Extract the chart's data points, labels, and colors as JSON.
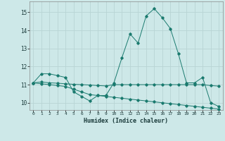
{
  "xlabel": "Humidex (Indice chaleur)",
  "background_color": "#cde8e8",
  "grid_color": "#b8d4d4",
  "line_color": "#1a7a6e",
  "xlim": [
    -0.5,
    23.5
  ],
  "ylim": [
    9.6,
    15.6
  ],
  "yticks": [
    10,
    11,
    12,
    13,
    14,
    15
  ],
  "xticks": [
    0,
    1,
    2,
    3,
    4,
    5,
    6,
    7,
    8,
    9,
    10,
    11,
    12,
    13,
    14,
    15,
    16,
    17,
    18,
    19,
    20,
    21,
    22,
    23
  ],
  "series": [
    [
      11.1,
      11.6,
      11.6,
      11.5,
      11.4,
      10.6,
      10.35,
      10.1,
      10.4,
      10.4,
      11.1,
      12.5,
      13.8,
      13.3,
      14.8,
      15.2,
      14.7,
      14.1,
      12.7,
      11.1,
      11.1,
      11.4,
      10.0,
      9.8
    ],
    [
      11.1,
      11.15,
      11.1,
      11.08,
      11.05,
      11.02,
      11.0,
      10.98,
      10.95,
      10.93,
      11.0,
      11.0,
      11.0,
      11.0,
      11.0,
      11.0,
      11.0,
      11.0,
      11.0,
      11.0,
      11.0,
      11.0,
      10.95,
      10.92
    ],
    [
      11.1,
      11.05,
      11.0,
      10.95,
      10.9,
      10.75,
      10.6,
      10.45,
      10.4,
      10.35,
      10.3,
      10.25,
      10.2,
      10.15,
      10.1,
      10.05,
      10.0,
      9.95,
      9.9,
      9.85,
      9.8,
      9.75,
      9.7,
      9.65
    ]
  ]
}
